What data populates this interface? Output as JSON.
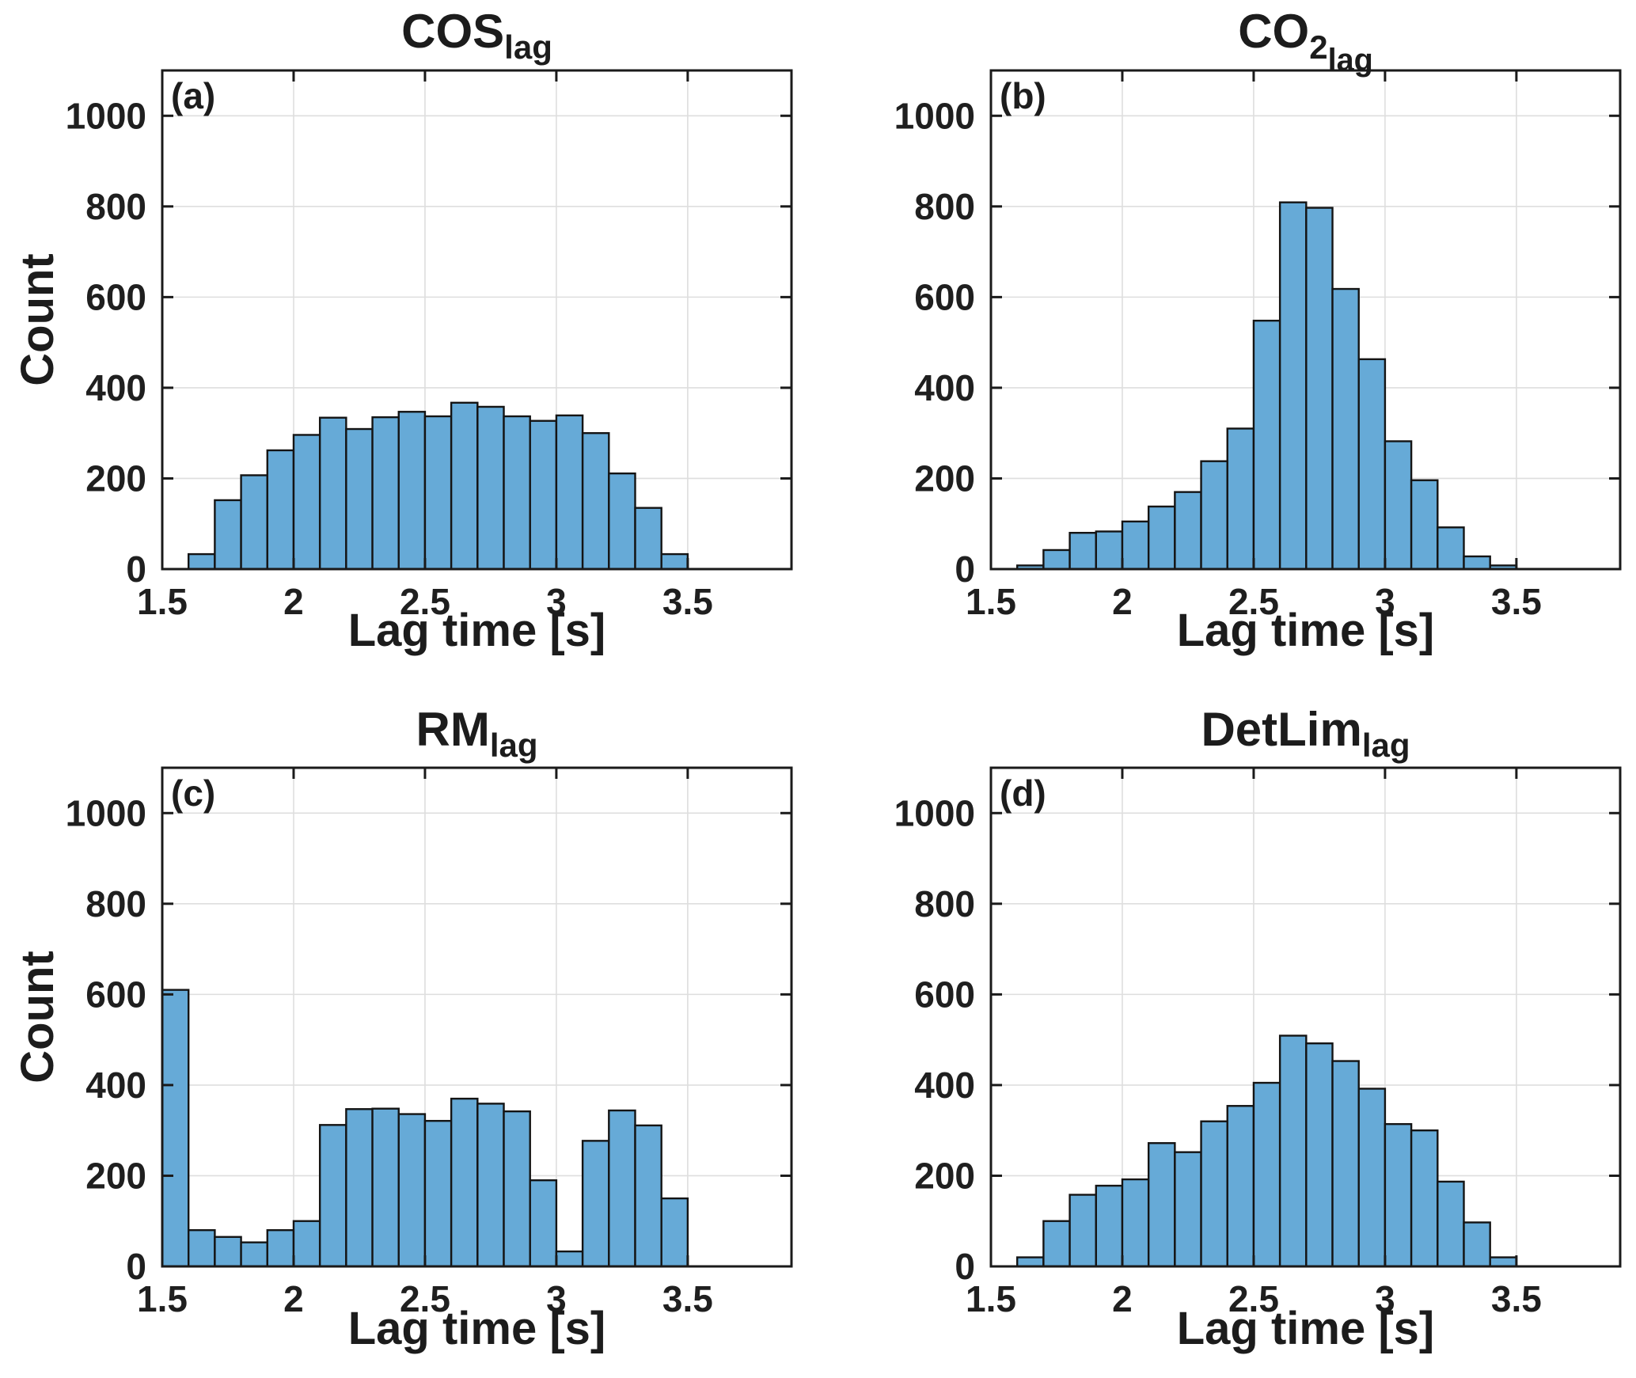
{
  "figure": {
    "background": "#FFFFFF",
    "xlabel": "Lag time [s]",
    "ylabel": "Count",
    "xlim": [
      1.5,
      3.895
    ],
    "ylim": [
      0,
      1100
    ],
    "grid": true,
    "x_ticks": [
      {
        "v": 1.5,
        "label": "1.5"
      },
      {
        "v": 2.0,
        "label": "2"
      },
      {
        "v": 2.5,
        "label": "2.5"
      },
      {
        "v": 3.0,
        "label": "3"
      },
      {
        "v": 3.5,
        "label": "3.5"
      }
    ],
    "y_ticks": [
      {
        "v": 0,
        "label": "0"
      },
      {
        "v": 200,
        "label": "200"
      },
      {
        "v": 400,
        "label": "400"
      },
      {
        "v": 600,
        "label": "600"
      },
      {
        "v": 800,
        "label": "800"
      },
      {
        "v": 1000,
        "label": "1000"
      }
    ],
    "colors": {
      "bar_fill": "#66AAD7",
      "bar_edge": "#141414",
      "grid": "#DEDEDE",
      "axis": "#1A1A1A",
      "text": "#1F1F1F"
    }
  },
  "chart_data": [
    {
      "type": "bar",
      "panel_label": "(a)",
      "title_parts": [
        {
          "text": "COS",
          "level": 0
        },
        {
          "text": "lag",
          "level": 1
        }
      ],
      "title_plain": "COS_lag",
      "xlabel": "Lag time [s]",
      "ylabel": "Count",
      "bin_start": 1.6,
      "bin_width": 0.1,
      "values": [
        33,
        152,
        207,
        262,
        296,
        334,
        309,
        335,
        347,
        337,
        367,
        358,
        337,
        327,
        339,
        300,
        211,
        135,
        33
      ]
    },
    {
      "type": "bar",
      "panel_label": "(b)",
      "title_parts": [
        {
          "text": "CO",
          "level": 0
        },
        {
          "text": "2",
          "level": 1
        },
        {
          "text": "lag",
          "level": 2
        }
      ],
      "title_plain": "CO2_lag",
      "xlabel": "Lag time [s]",
      "bin_start": 1.6,
      "bin_width": 0.1,
      "values": [
        8,
        42,
        80,
        83,
        105,
        138,
        170,
        238,
        310,
        548,
        809,
        797,
        618,
        463,
        282,
        196,
        92,
        28,
        8
      ]
    },
    {
      "type": "bar",
      "panel_label": "(c)",
      "title_parts": [
        {
          "text": "RM",
          "level": 0
        },
        {
          "text": "lag",
          "level": 1
        }
      ],
      "title_plain": "RM_lag",
      "xlabel": "Lag time [s]",
      "ylabel": "Count",
      "bin_start": 1.5,
      "bin_width": 0.1,
      "values": [
        610,
        80,
        65,
        53,
        80,
        100,
        312,
        347,
        348,
        336,
        321,
        370,
        359,
        342,
        190,
        33,
        277,
        344,
        311,
        150
      ]
    },
    {
      "type": "bar",
      "panel_label": "(d)",
      "title_parts": [
        {
          "text": "DetLim",
          "level": 0
        },
        {
          "text": "lag",
          "level": 1
        }
      ],
      "title_plain": "DetLim_lag",
      "xlabel": "Lag time [s]",
      "bin_start": 1.6,
      "bin_width": 0.1,
      "values": [
        20,
        100,
        158,
        178,
        192,
        272,
        252,
        320,
        354,
        405,
        509,
        492,
        453,
        392,
        314,
        300,
        187,
        97,
        20
      ]
    }
  ]
}
